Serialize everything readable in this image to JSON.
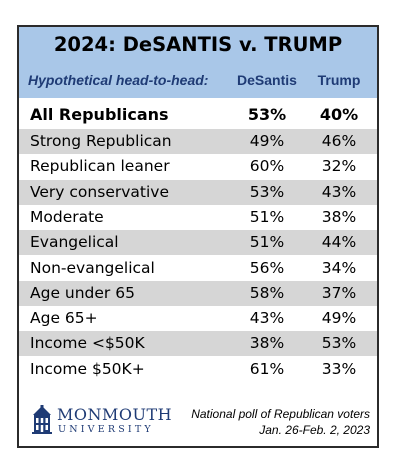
{
  "title": "2024: DeSANTIS v. TRUMP",
  "subheader": {
    "label": "Hypothetical head-to-head:",
    "col1": "DeSantis",
    "col2": "Trump"
  },
  "colors": {
    "header_bg": "#a9c7e8",
    "shaded_row": "#d6d6d6",
    "brand_blue": "#1f3b75"
  },
  "chart_data": {
    "type": "table",
    "title": "2024: DeSANTIS v. TRUMP",
    "columns": [
      "Hypothetical head-to-head:",
      "DeSantis",
      "Trump"
    ],
    "rows": [
      {
        "label": "All Republicans",
        "desantis": "53%",
        "trump": "40%",
        "bold": true,
        "shaded": false
      },
      {
        "label": "Strong Republican",
        "desantis": "49%",
        "trump": "46%",
        "bold": false,
        "shaded": true
      },
      {
        "label": "Republican leaner",
        "desantis": "60%",
        "trump": "32%",
        "bold": false,
        "shaded": false
      },
      {
        "label": "Very conservative",
        "desantis": "53%",
        "trump": "43%",
        "bold": false,
        "shaded": true
      },
      {
        "label": "Moderate",
        "desantis": "51%",
        "trump": "38%",
        "bold": false,
        "shaded": false
      },
      {
        "label": "Evangelical",
        "desantis": "51%",
        "trump": "44%",
        "bold": false,
        "shaded": true
      },
      {
        "label": "Non-evangelical",
        "desantis": "56%",
        "trump": "34%",
        "bold": false,
        "shaded": false
      },
      {
        "label": "Age under 65",
        "desantis": "58%",
        "trump": "37%",
        "bold": false,
        "shaded": true
      },
      {
        "label": "Age 65+",
        "desantis": "43%",
        "trump": "49%",
        "bold": false,
        "shaded": false
      },
      {
        "label": "Income <$50K",
        "desantis": "38%",
        "trump": "53%",
        "bold": false,
        "shaded": true
      },
      {
        "label": "Income $50K+",
        "desantis": "61%",
        "trump": "33%",
        "bold": false,
        "shaded": false
      }
    ]
  },
  "footer": {
    "logo_name": "MONMOUTH",
    "logo_sub": "UNIVERSITY",
    "logo_icon": "monmouth-hall-icon",
    "note_line1": "National poll of Republican voters",
    "note_line2": "Jan. 26-Feb. 2, 2023"
  }
}
